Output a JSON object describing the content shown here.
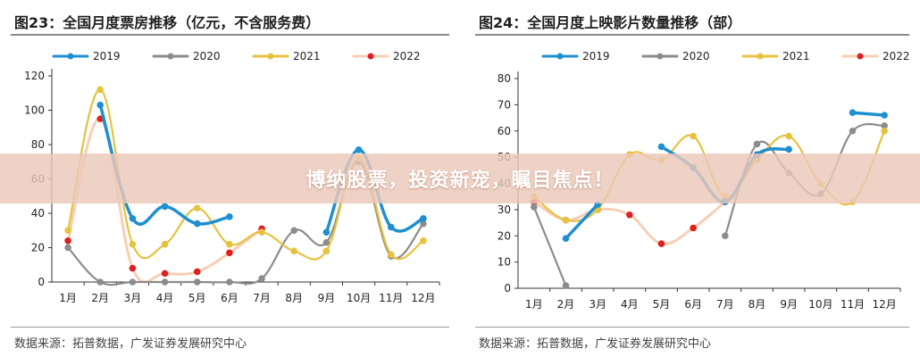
{
  "banner": {
    "text": "博纳股票，投资新宠，瞩目焦点！"
  },
  "colors": {
    "2019": "#1f8fd1",
    "2020": "#8c8c8c",
    "2021": "#e6c23f",
    "2022": "#f7cfb3",
    "2022_marker": "#e02020"
  },
  "chart_data": [
    {
      "type": "line",
      "title": "图23：全国月度票房推移（亿元，不含服务费）",
      "source": "数据来源：拓普数据，广发证券发展研究中心",
      "x": [
        "1月",
        "2月",
        "3月",
        "4月",
        "5月",
        "6月",
        "7月",
        "8月",
        "9月",
        "10月",
        "11月",
        "12月"
      ],
      "ylim": [
        0,
        120
      ],
      "yticks": [
        0,
        20,
        40,
        60,
        80,
        100,
        120
      ],
      "legend": "top",
      "grid": false,
      "series": [
        {
          "name": "2019",
          "values": [
            null,
            103,
            37,
            44,
            34,
            38,
            null,
            null,
            29,
            77,
            32,
            37
          ]
        },
        {
          "name": "2020",
          "values": [
            20,
            0,
            0,
            0,
            0,
            0,
            2,
            30,
            23,
            70,
            15,
            34
          ]
        },
        {
          "name": "2021",
          "values": [
            30,
            112,
            22,
            22,
            43,
            22,
            29,
            18,
            18,
            72,
            16,
            24
          ]
        },
        {
          "name": "2022",
          "values": [
            24,
            95,
            8,
            5,
            6,
            17,
            31,
            null,
            null,
            null,
            null,
            null
          ]
        }
      ]
    },
    {
      "type": "line",
      "title": "图24：全国月度上映影片数量推移（部）",
      "source": "数据来源：拓普数据，广发证券发展研究中心",
      "x": [
        "1月",
        "2月",
        "3月",
        "4月",
        "5月",
        "6月",
        "7月",
        "8月",
        "9月",
        "10月",
        "11月",
        "12月"
      ],
      "ylim": [
        0,
        80
      ],
      "yticks": [
        0,
        10,
        20,
        30,
        40,
        50,
        60,
        70,
        80
      ],
      "legend": "top",
      "grid": false,
      "series": [
        {
          "name": "2019",
          "values": [
            null,
            19,
            32,
            null,
            54,
            46,
            33,
            51,
            53,
            null,
            67,
            66
          ]
        },
        {
          "name": "2020",
          "values": [
            31,
            1,
            null,
            null,
            null,
            null,
            20,
            55,
            44,
            36,
            60,
            62
          ]
        },
        {
          "name": "2021",
          "values": [
            35,
            26,
            30,
            51,
            49,
            58,
            35,
            49,
            58,
            40,
            33,
            60
          ]
        },
        {
          "name": "2022",
          "values": [
            33,
            26,
            30,
            28,
            17,
            23,
            33,
            null,
            null,
            null,
            null,
            null
          ]
        }
      ]
    }
  ]
}
